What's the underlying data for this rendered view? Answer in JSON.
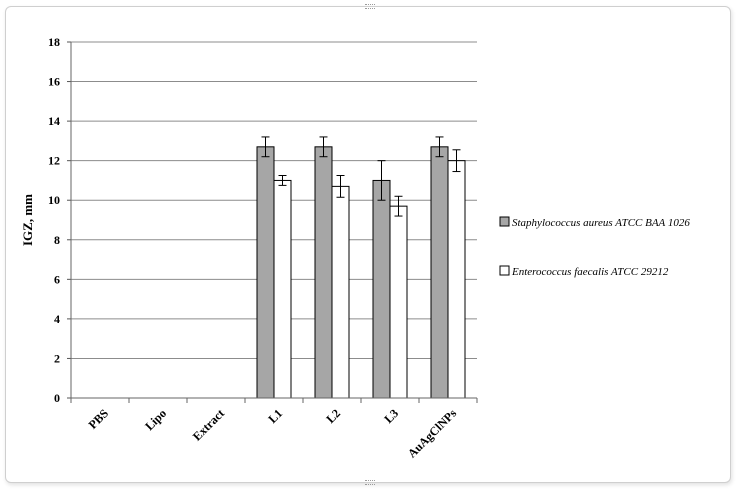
{
  "chart_data": {
    "type": "bar",
    "title": "",
    "xlabel": "",
    "ylabel": "IGZ, mm",
    "ylim": [
      0,
      18
    ],
    "yticks": [
      "0",
      "2",
      "4",
      "6",
      "8",
      "10",
      "12",
      "14",
      "16",
      "18"
    ],
    "grid": true,
    "legend_position": "right",
    "categories": [
      "PBS",
      "Lipo",
      "Extract",
      "L1",
      "L2",
      "L3",
      "AuAgClNPs"
    ],
    "series": [
      {
        "name": "Staphylococcus aureus ATCC BAA 1026",
        "color": "#a6a6a6",
        "values": [
          0,
          0,
          0,
          12.7,
          12.7,
          11.0,
          12.7
        ],
        "errors": [
          0,
          0,
          0,
          0.5,
          0.5,
          1.0,
          0.5
        ]
      },
      {
        "name": "Enterococcus faecalis ATCC 29212",
        "color": "#ffffff",
        "values": [
          0,
          0,
          0,
          11.0,
          10.7,
          9.7,
          12.0
        ],
        "errors": [
          0,
          0,
          0,
          0.25,
          0.55,
          0.5,
          0.55
        ]
      }
    ]
  }
}
